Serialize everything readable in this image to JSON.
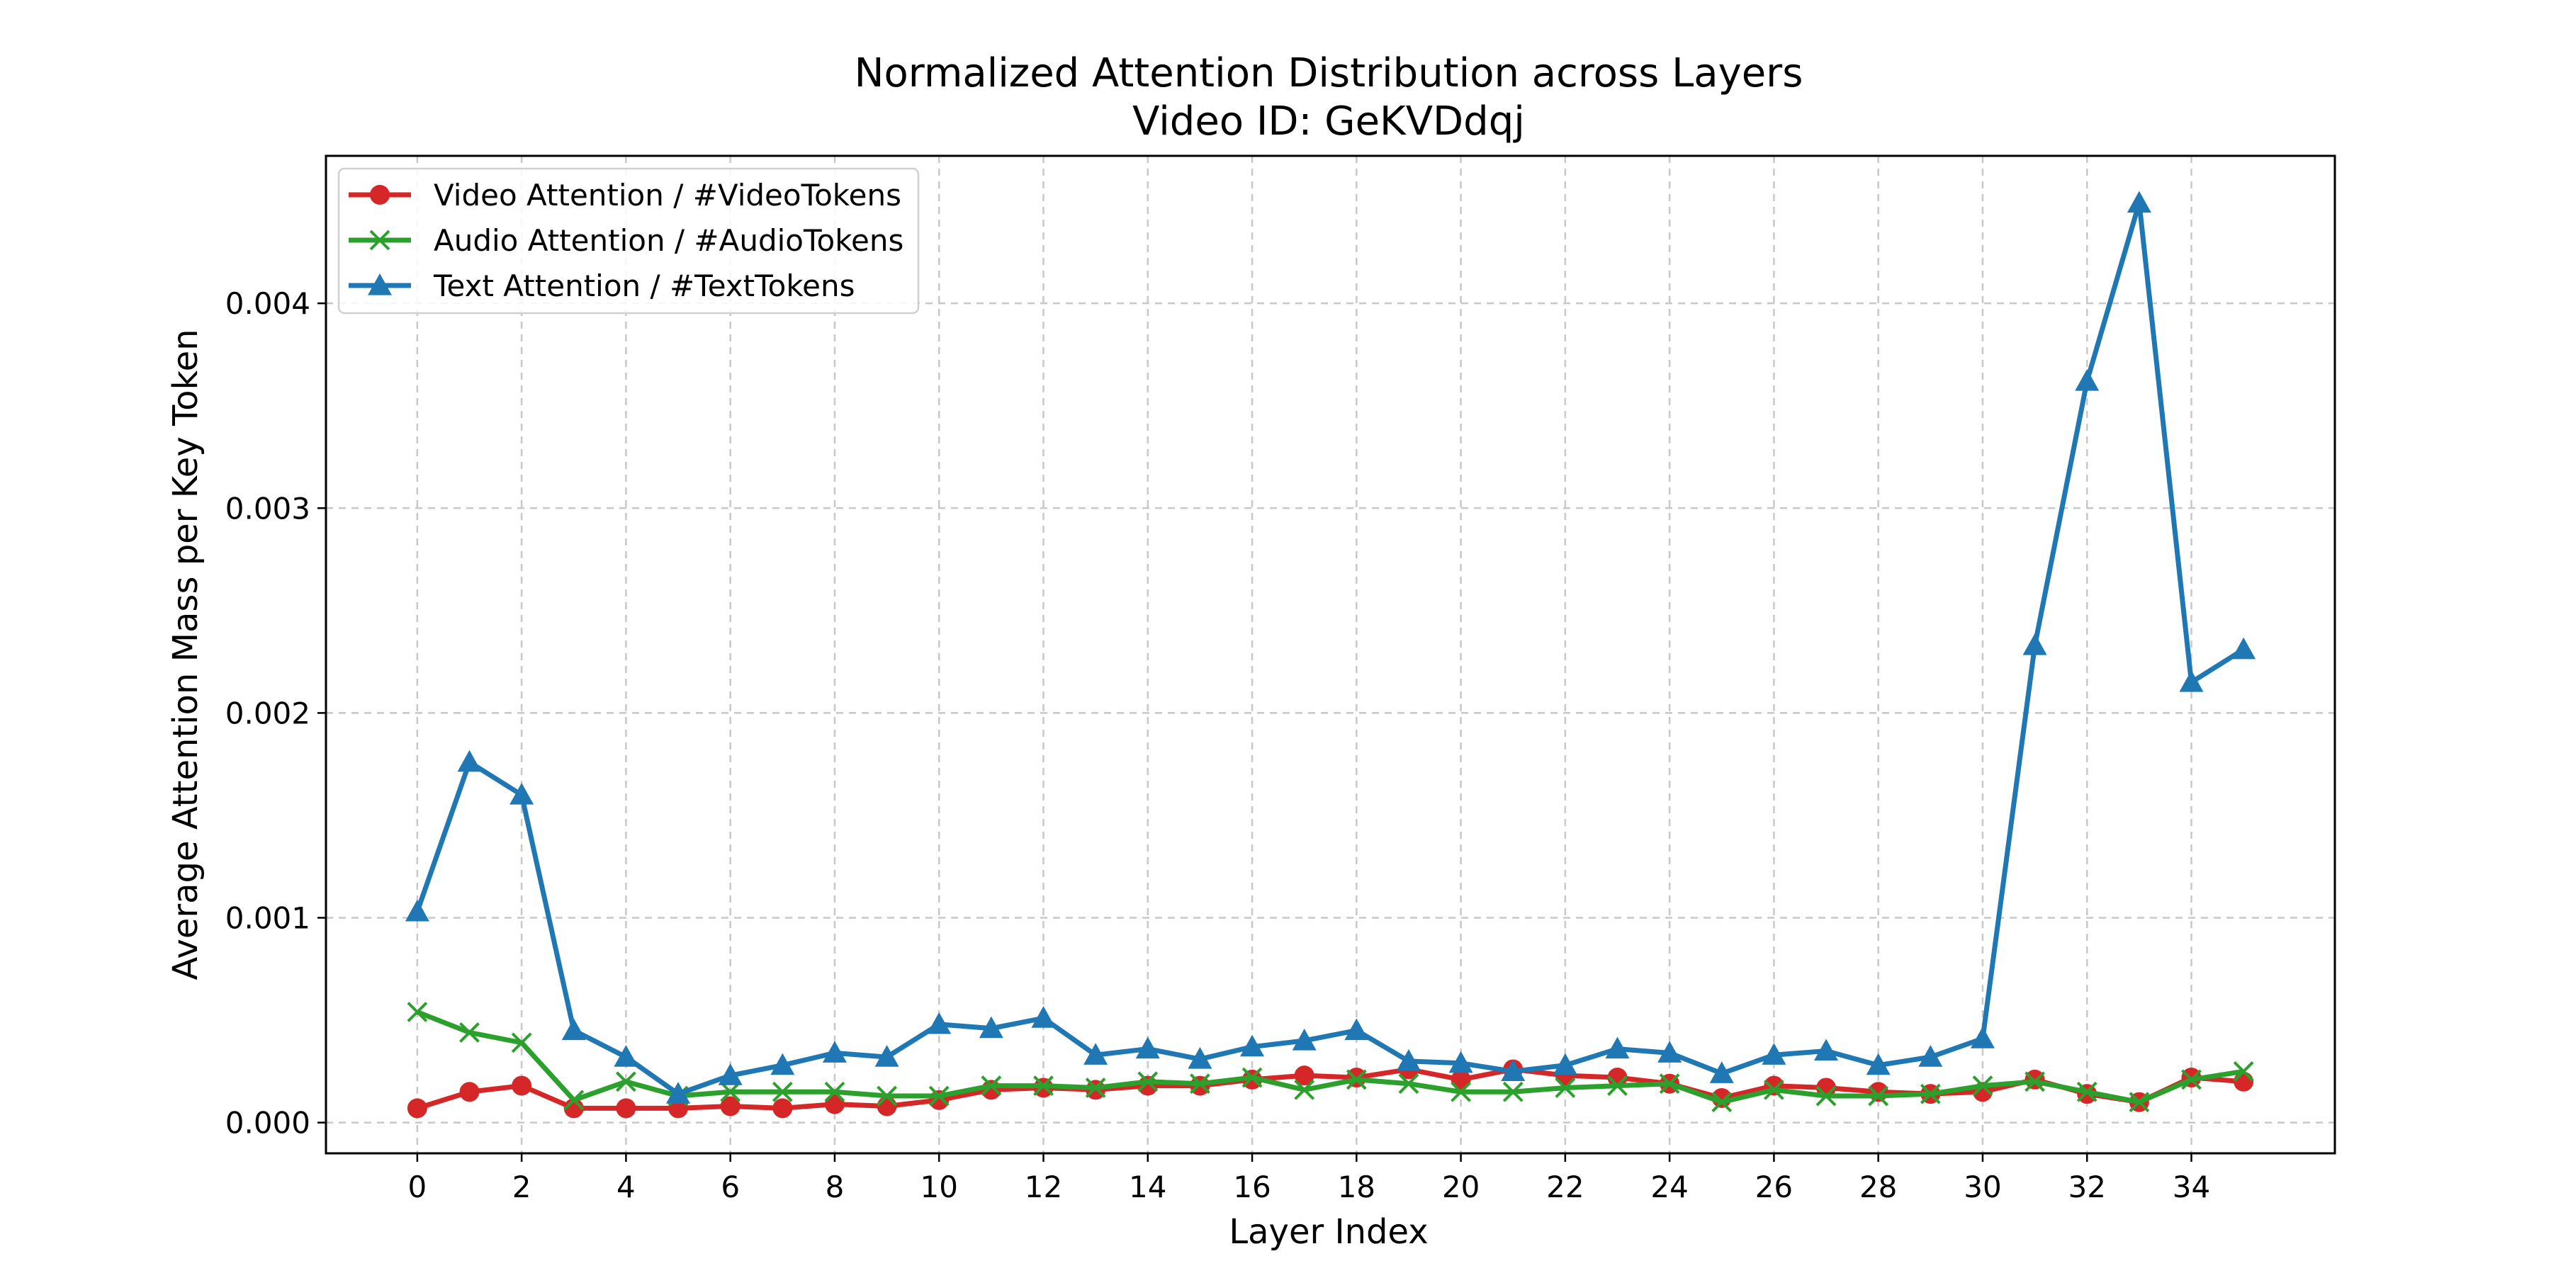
{
  "chart_data": {
    "type": "line",
    "title": "Normalized Attention Distribution across Layers",
    "subtitle": "Video ID: GeKVDdqj",
    "xlabel": "Layer Index",
    "ylabel": "Average Attention Mass per Key Token",
    "x": [
      0,
      1,
      2,
      3,
      4,
      5,
      6,
      7,
      8,
      9,
      10,
      11,
      12,
      13,
      14,
      15,
      16,
      17,
      18,
      19,
      20,
      21,
      22,
      23,
      24,
      25,
      26,
      27,
      28,
      29,
      30,
      31,
      32,
      33,
      34,
      35
    ],
    "xticks": [
      "0",
      "2",
      "4",
      "6",
      "8",
      "10",
      "12",
      "14",
      "16",
      "18",
      "20",
      "22",
      "24",
      "26",
      "28",
      "30",
      "32",
      "34"
    ],
    "xtick_values": [
      0,
      2,
      4,
      6,
      8,
      10,
      12,
      14,
      16,
      18,
      20,
      22,
      24,
      26,
      28,
      30,
      32,
      34
    ],
    "yticks": [
      "0.000",
      "0.001",
      "0.002",
      "0.003",
      "0.004"
    ],
    "ytick_values": [
      0,
      0.001,
      0.002,
      0.003,
      0.004
    ],
    "xlim": [
      -1.75,
      36.75
    ],
    "ylim": [
      -0.00015,
      0.00472
    ],
    "grid": true,
    "legend_position": "top-left",
    "series": [
      {
        "name": "Video Attention / #VideoTokens",
        "color": "#d62728",
        "marker": "circle",
        "values": [
          7e-05,
          0.00015,
          0.00018,
          7e-05,
          7e-05,
          7e-05,
          8e-05,
          7e-05,
          9e-05,
          8e-05,
          0.00011,
          0.00016,
          0.00017,
          0.00016,
          0.00018,
          0.00018,
          0.00021,
          0.00023,
          0.00022,
          0.00026,
          0.00021,
          0.00026,
          0.00023,
          0.00022,
          0.00019,
          0.00012,
          0.00018,
          0.00017,
          0.00015,
          0.00014,
          0.00015,
          0.00021,
          0.00014,
          0.0001,
          0.00022,
          0.0002
        ]
      },
      {
        "name": "Audio Attention / #AudioTokens",
        "color": "#2ca02c",
        "marker": "x",
        "values": [
          0.00054,
          0.00044,
          0.00039,
          0.00011,
          0.0002,
          0.00013,
          0.00015,
          0.00015,
          0.00015,
          0.00013,
          0.00013,
          0.00018,
          0.00018,
          0.00017,
          0.0002,
          0.00019,
          0.00022,
          0.00016,
          0.00021,
          0.00019,
          0.00015,
          0.00015,
          0.00017,
          0.00018,
          0.00019,
          0.0001,
          0.00016,
          0.00013,
          0.00013,
          0.00014,
          0.00018,
          0.0002,
          0.00015,
          0.0001,
          0.00021,
          0.00025
        ]
      },
      {
        "name": "Text Attention / #TextTokens",
        "color": "#1f77b4",
        "marker": "triangle",
        "values": [
          0.00103,
          0.00176,
          0.0016,
          0.00045,
          0.00032,
          0.00014,
          0.00023,
          0.00028,
          0.00034,
          0.00032,
          0.00048,
          0.00046,
          0.00051,
          0.00033,
          0.00036,
          0.00031,
          0.00037,
          0.0004,
          0.00045,
          0.0003,
          0.00029,
          0.00025,
          0.00028,
          0.00036,
          0.00034,
          0.00024,
          0.00033,
          0.00035,
          0.00028,
          0.00032,
          0.00041,
          0.00233,
          0.00362,
          0.00449,
          0.00215,
          0.00231
        ]
      }
    ]
  }
}
